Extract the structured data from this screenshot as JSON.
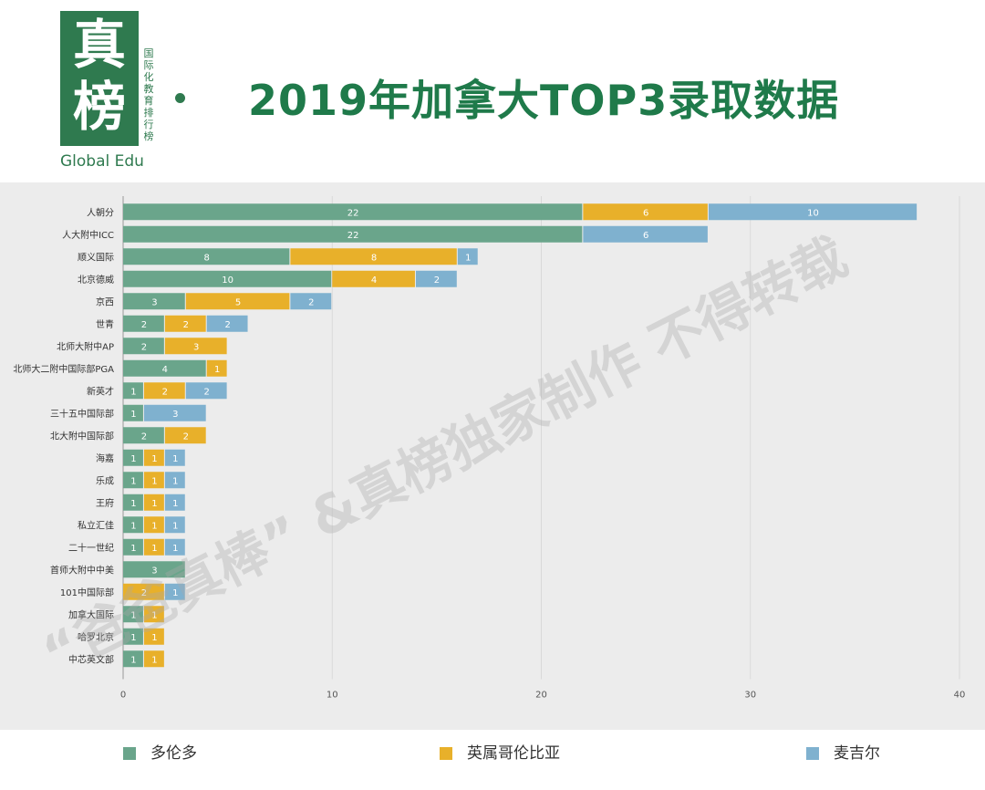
{
  "logo": {
    "char_top": "真",
    "char_bottom": "榜",
    "vertical_text": "国际化教育排行榜",
    "subtitle": "Global Edu"
  },
  "title": "2019年加拿大TOP3录取数据",
  "watermark": "“爸爸真棒” &真榜独家制作 不得转载",
  "colors": {
    "toronto": "#6aa58b",
    "ubc": "#e8b02a",
    "mcgill": "#7fb1cf",
    "title": "#1f7a4a",
    "panel": "#ececec"
  },
  "chart_data": {
    "type": "bar",
    "orientation": "horizontal",
    "stacked": true,
    "categories": [
      "人朝分",
      "人大附中ICC",
      "顺义国际",
      "北京德威",
      "京西",
      "世青",
      "北师大附中AP",
      "北师大二附中国际部PGA",
      "新英才",
      "三十五中国际部",
      "北大附中国际部",
      "海嘉",
      "乐成",
      "王府",
      "私立汇佳",
      "二十一世纪",
      "首师大附中中美",
      "101中国际部",
      "加拿大国际",
      "哈罗北京",
      "中芯英文部"
    ],
    "series": [
      {
        "name": "多伦多",
        "color": "#6aa58b",
        "values": [
          22,
          22,
          8,
          10,
          3,
          2,
          2,
          4,
          1,
          1,
          2,
          1,
          1,
          1,
          1,
          1,
          3,
          0,
          1,
          1,
          1
        ]
      },
      {
        "name": "英属哥伦比亚",
        "color": "#e8b02a",
        "values": [
          6,
          0,
          8,
          4,
          5,
          2,
          3,
          1,
          2,
          0,
          2,
          1,
          1,
          1,
          1,
          1,
          0,
          2,
          1,
          1,
          1
        ]
      },
      {
        "name": "麦吉尔",
        "color": "#7fb1cf",
        "values": [
          10,
          6,
          1,
          2,
          2,
          2,
          0,
          0,
          2,
          3,
          0,
          1,
          1,
          1,
          1,
          1,
          0,
          1,
          0,
          0,
          0
        ]
      }
    ],
    "xlim": [
      0,
      40
    ],
    "xticks": [
      0,
      10,
      20,
      30,
      40
    ],
    "grid": true,
    "legend": "bottom"
  }
}
